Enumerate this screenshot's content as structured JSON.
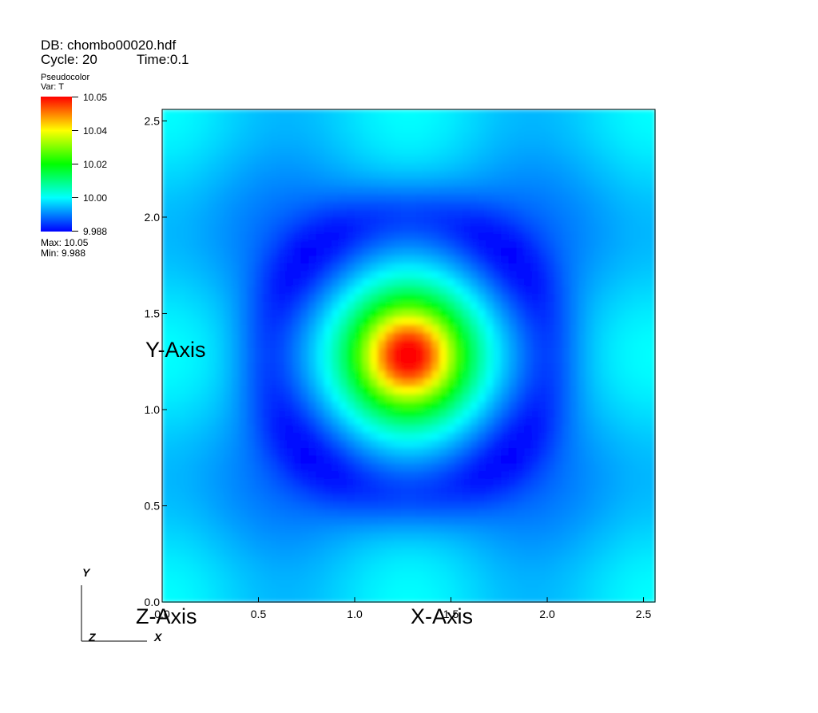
{
  "header": {
    "db_label": "DB: chombo00020.hdf",
    "cycle_label": "Cycle: 20",
    "time_label": "Time:0.1"
  },
  "legend": {
    "plot_type": "Pseudocolor",
    "var_label": "Var: T",
    "ticks": [
      "10.05",
      "10.04",
      "10.02",
      "10.00",
      "9.988"
    ],
    "tick_values": [
      10.05,
      10.04,
      10.02,
      10.0,
      9.988
    ],
    "max_label": "Max:  10.05",
    "min_label": "Min:  9.988",
    "colors": [
      "#ff0000",
      "#ffff00",
      "#00ff00",
      "#00ffff",
      "#0000ff"
    ]
  },
  "triad": {
    "y": "Y",
    "x": "X",
    "z": "Z"
  },
  "chart_data": {
    "type": "heatmap",
    "variable": "T",
    "xlabel": "X-Axis",
    "ylabel": "Y-Axis",
    "zlabel": "Z-Axis",
    "xlim": [
      0.0,
      2.56
    ],
    "ylim": [
      0.0,
      2.56
    ],
    "xticks": [
      0.0,
      0.5,
      1.0,
      1.5,
      2.0,
      2.5
    ],
    "xtick_labels": [
      "0.0",
      "0.5",
      "1.0",
      "1.5",
      "2.0",
      "2.5"
    ],
    "yticks": [
      0.0,
      0.5,
      1.0,
      1.5,
      2.0,
      2.5
    ],
    "ytick_labels": [
      "0.0",
      "0.5",
      "1.0",
      "1.5",
      "2.0",
      "2.5"
    ],
    "value_range": [
      9.988,
      10.05
    ],
    "peak_center": [
      1.28,
      1.28
    ],
    "peak_value": 10.05,
    "min_value": 9.988
  }
}
